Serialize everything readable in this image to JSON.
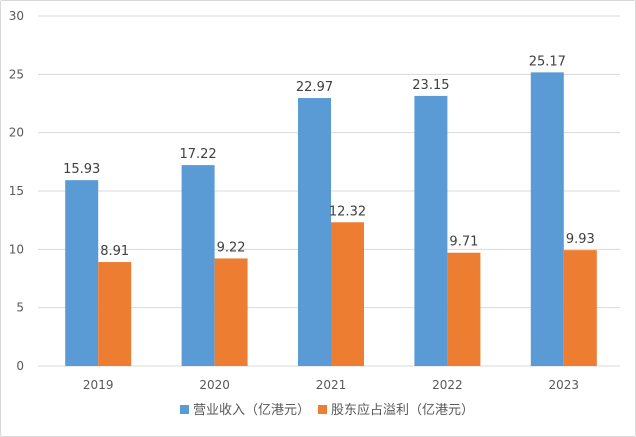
{
  "chart_data": {
    "type": "bar",
    "categories": [
      "2019",
      "2020",
      "2021",
      "2022",
      "2023"
    ],
    "series": [
      {
        "name": "营业收入（亿港元）",
        "values": [
          15.93,
          17.22,
          22.97,
          23.15,
          25.17
        ],
        "color": "#5B9BD5"
      },
      {
        "name": "股东应占溢利（亿港元）",
        "values": [
          8.91,
          9.22,
          12.32,
          9.71,
          9.93
        ],
        "color": "#ED7D31"
      }
    ],
    "yticks": [
      "0",
      "5",
      "10",
      "15",
      "20",
      "25",
      "30"
    ],
    "ylim": [
      0,
      30
    ],
    "grid": true,
    "legend_position": "bottom",
    "data_labels": {
      "series0": [
        "15.93",
        "17.22",
        "22.97",
        "23.15",
        "25.17"
      ],
      "series1": [
        "8.91",
        "9.22",
        "12.32",
        "9.71",
        "9.93"
      ]
    }
  }
}
